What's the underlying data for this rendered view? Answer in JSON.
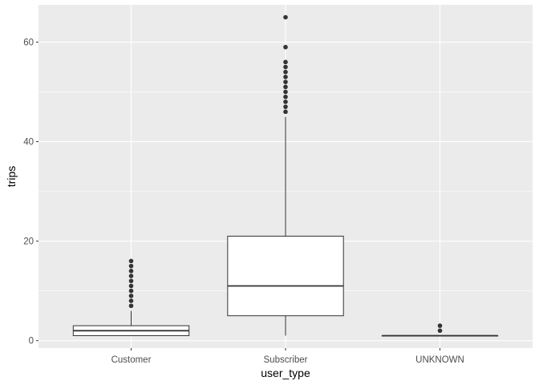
{
  "chart_data": {
    "type": "boxplot",
    "xlabel": "user_type",
    "ylabel": "trips",
    "categories": [
      "Customer",
      "Subscriber",
      "UNKNOWN"
    ],
    "ylim": [
      -1.5,
      67.5
    ],
    "yticks": [
      0,
      20,
      40,
      60
    ],
    "grid": true,
    "legend": "none",
    "boxes": [
      {
        "category": "Customer",
        "whisker_low": 1,
        "q1": 1,
        "median": 2,
        "q3": 3,
        "whisker_high": 6,
        "outliers": [
          7,
          8,
          9,
          10,
          11,
          12,
          13,
          14,
          15,
          16
        ]
      },
      {
        "category": "Subscriber",
        "whisker_low": 1,
        "q1": 5,
        "median": 11,
        "q3": 21,
        "whisker_high": 45,
        "outliers": [
          46,
          47,
          48,
          49,
          50,
          51,
          52,
          53,
          54,
          55,
          56,
          59,
          65
        ]
      },
      {
        "category": "UNKNOWN",
        "whisker_low": 1,
        "q1": 1,
        "median": 1,
        "q3": 1,
        "whisker_high": 1,
        "outliers": [
          2,
          3
        ]
      }
    ],
    "colors": {
      "panel_background": "#ebebeb",
      "grid_major": "#ffffff",
      "box_fill": "#ffffff",
      "box_line": "#333333",
      "outlier": "#333333"
    }
  }
}
